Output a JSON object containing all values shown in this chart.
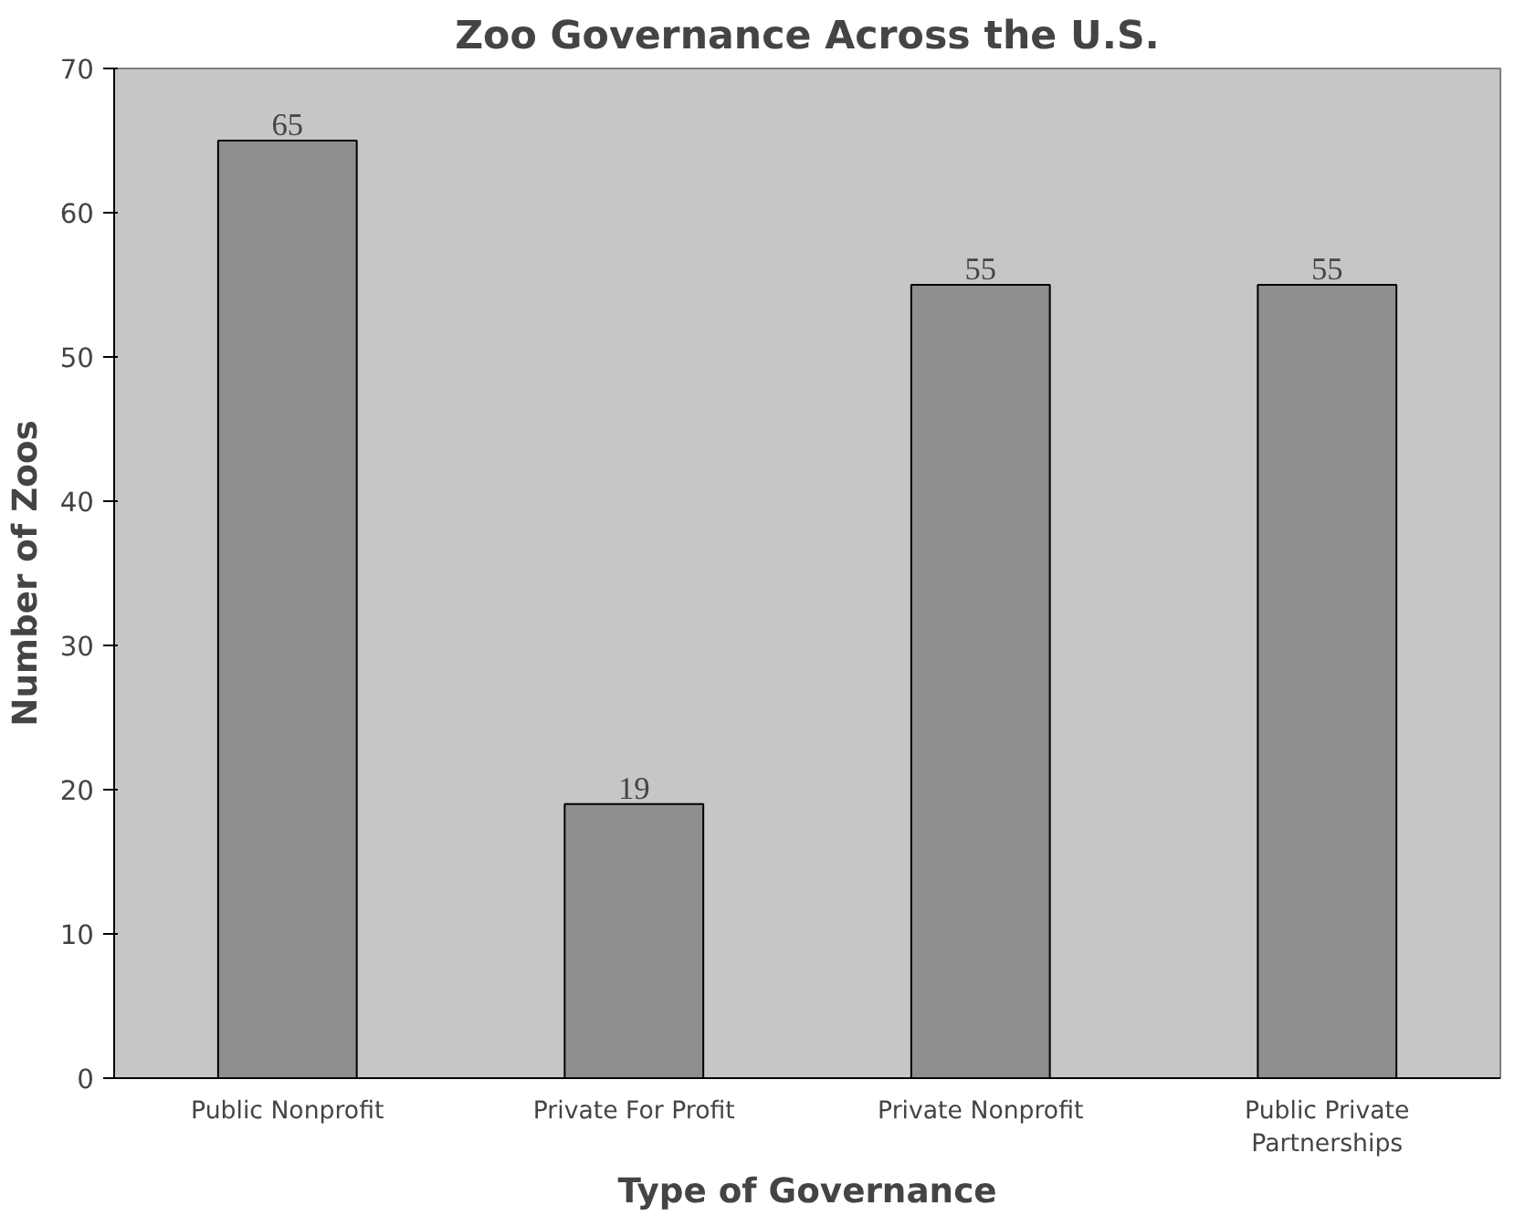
{
  "chart_data": {
    "type": "bar",
    "title": "Zoo Governance Across the U.S.",
    "xlabel": "Type of Governance",
    "ylabel": "Number of Zoos",
    "categories": [
      "Public Nonprofit",
      "Private For Profit",
      "Private Nonprofit",
      "Public Private Partnerships"
    ],
    "values": [
      65,
      19,
      55,
      55
    ],
    "color": "#8f8f8f",
    "ylim": [
      0,
      70
    ],
    "yticks": [
      0,
      10,
      20,
      30,
      40,
      50,
      60,
      70
    ],
    "grid": false,
    "data_labels": true
  }
}
